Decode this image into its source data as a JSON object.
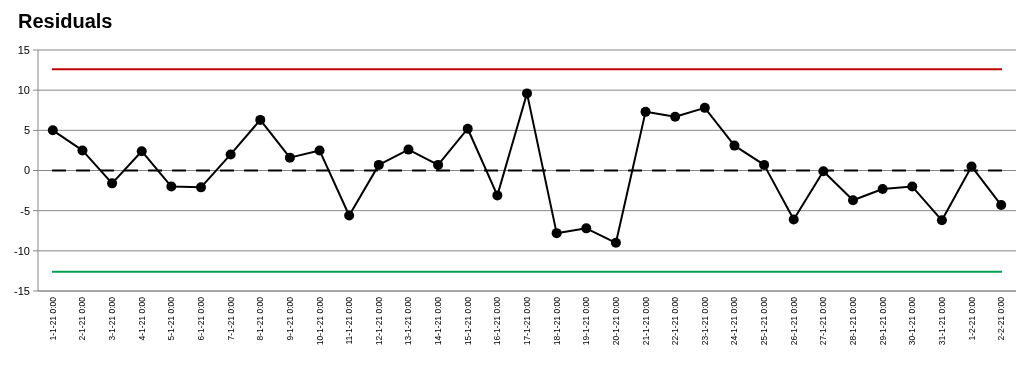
{
  "chart_data": {
    "type": "line",
    "title": "Residuals",
    "categories": [
      "1-1-21 0:00",
      "2-1-21 0:00",
      "3-1-21 0:00",
      "4-1-21 0:00",
      "5-1-21 0:00",
      "6-1-21 0:00",
      "7-1-21 0:00",
      "8-1-21 0:00",
      "9-1-21 0:00",
      "10-1-21 0:00",
      "11-1-21 0:00",
      "12-1-21 0:00",
      "13-1-21 0:00",
      "14-1-21 0:00",
      "15-1-21 0:00",
      "16-1-21 0:00",
      "17-1-21 0:00",
      "18-1-21 0:00",
      "19-1-21 0:00",
      "20-1-21 0:00",
      "21-1-21 0:00",
      "22-1-21 0:00",
      "23-1-21 0:00",
      "24-1-21 0:00",
      "25-1-21 0:00",
      "26-1-21 0:00",
      "27-1-21 0:00",
      "28-1-21 0:00",
      "29-1-21 0:00",
      "30-1-21 0:00",
      "31-1-21 0:00",
      "1-2-21 0:00",
      "2-2-21 0:00"
    ],
    "series": [
      {
        "color": "#000000",
        "values": [
          5.0,
          2.5,
          -1.6,
          2.4,
          -2.0,
          -2.1,
          2.0,
          6.3,
          1.6,
          2.5,
          -5.6,
          0.7,
          2.6,
          0.7,
          5.2,
          -3.1,
          9.6,
          -7.8,
          -7.2,
          -9.0,
          7.3,
          6.7,
          7.8,
          3.1,
          0.7,
          -6.1,
          -0.1,
          -3.7,
          -2.3,
          -2.0,
          -6.2,
          0.5,
          -4.3
        ]
      }
    ],
    "ylim": [
      -15,
      15
    ],
    "yticks": [
      -15,
      -10,
      -5,
      0,
      5,
      10,
      15
    ],
    "grid": "y",
    "marker": "circle",
    "line_style": "solid",
    "ref_lines": [
      {
        "axis": "y",
        "value": 12.6,
        "color": "#c00000",
        "line_style": "solid"
      },
      {
        "axis": "y",
        "value": -12.6,
        "color": "#00a050",
        "line_style": "solid"
      },
      {
        "axis": "y",
        "value": 0,
        "color": "#000000",
        "line_style": "dashed"
      }
    ]
  }
}
